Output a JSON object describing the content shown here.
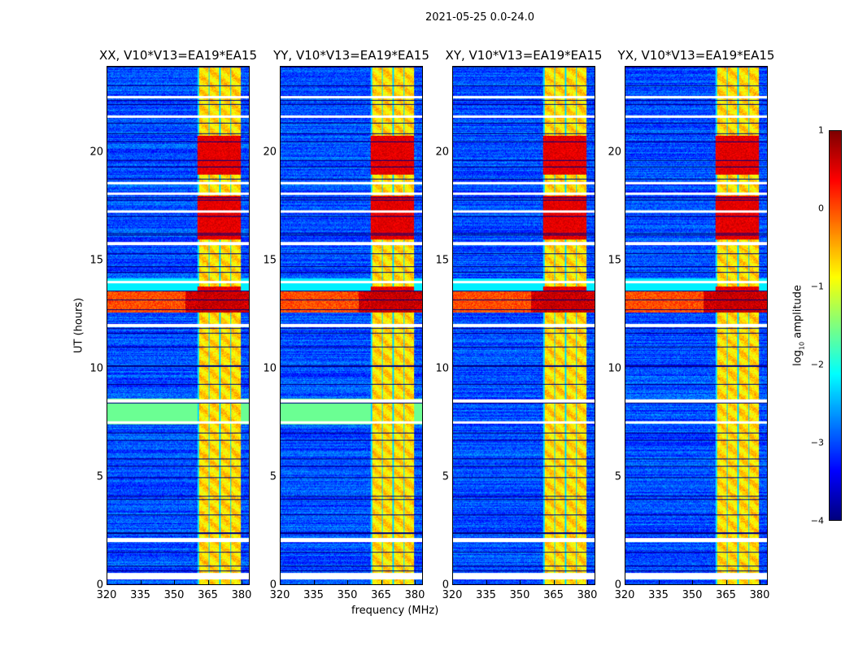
{
  "chart_data": {
    "type": "heatmap",
    "title": "2021-05-25 0.0-24.0",
    "xlabel": "frequency (MHz)",
    "ylabel": "UT (hours)",
    "xlim": [
      320,
      383.6
    ],
    "ylim": [
      0,
      24
    ],
    "xticks": [
      "320",
      "335",
      "350",
      "365",
      "380"
    ],
    "yticks": [
      "0",
      "5",
      "10",
      "15",
      "20"
    ],
    "panels": [
      {
        "title": "XX, V10*V13=EA19*EA15"
      },
      {
        "title": "YY, V10*V13=EA19*EA15"
      },
      {
        "title": "XY, V10*V13=EA19*EA15"
      },
      {
        "title": "YX, V10*V13=EA19*EA15"
      }
    ],
    "colorbar": {
      "label_main": "log",
      "label_sub": "10",
      "label_end": " amplitude",
      "clim": [
        -4,
        1
      ],
      "ticks": [
        "1",
        "0",
        "−1",
        "−2",
        "−3",
        "−4"
      ],
      "colormap": "jet"
    },
    "features": {
      "background_level": -3,
      "bright_band_MHz": [
        360.5,
        380
      ],
      "band_level": -0.7,
      "strong_rfi_hours": [
        [
          12.6,
          13.8
        ],
        [
          16,
          18
        ],
        [
          19,
          20.8
        ]
      ],
      "flagged_hours": [
        0.3,
        0.45,
        2.0,
        2.1,
        7.5,
        8.5,
        12.0,
        14.0,
        15.8,
        17.3,
        18.1,
        18.6,
        21.7,
        22.6
      ]
    }
  }
}
